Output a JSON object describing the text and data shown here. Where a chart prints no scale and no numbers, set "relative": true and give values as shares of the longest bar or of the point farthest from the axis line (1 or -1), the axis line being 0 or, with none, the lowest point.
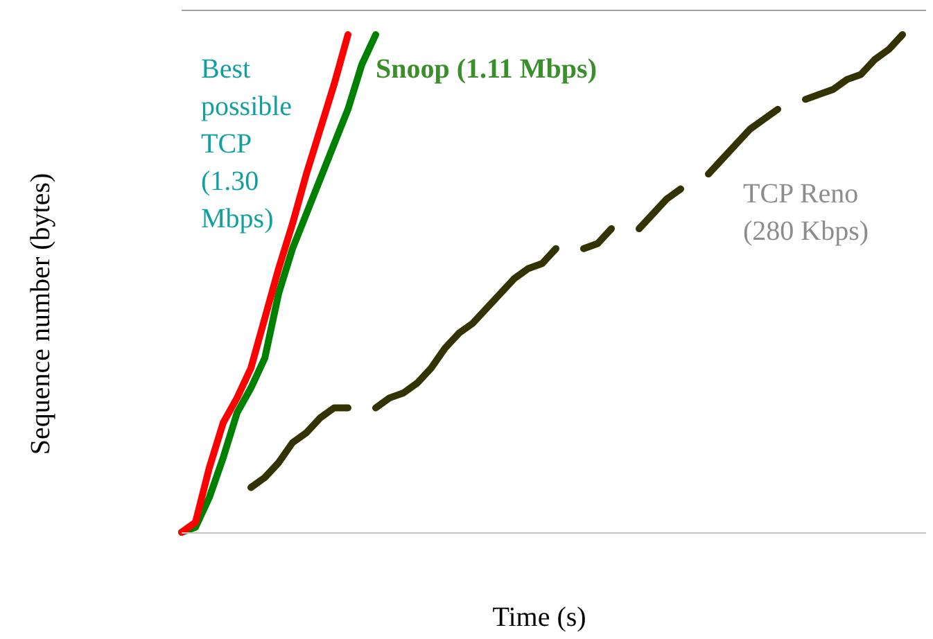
{
  "chart_data": {
    "type": "line",
    "relative": true,
    "xlabel": "Time (s)",
    "ylabel": "Sequence number (bytes)",
    "legend": false,
    "grid": false,
    "marker": "none",
    "line_style": "solid",
    "tick_labels": false,
    "categories": [
      null,
      null,
      null,
      null,
      null,
      null,
      null,
      null,
      null,
      null,
      null,
      null,
      null,
      null,
      null,
      null,
      null,
      null,
      null,
      null,
      null,
      null,
      null,
      null,
      null,
      null,
      null,
      null,
      null,
      null,
      null,
      null,
      null,
      null,
      null,
      null,
      null,
      null,
      null,
      null,
      null,
      null,
      null,
      null,
      null,
      null,
      null,
      null,
      null,
      null,
      null,
      null,
      null
    ],
    "series": [
      {
        "name": "Best possible TCP (1.30 Mbps)",
        "color": "#ff0000",
        "values": [
          0,
          0.02,
          0.13,
          0.22,
          0.27,
          0.33,
          0.43,
          0.53,
          0.62,
          0.72,
          0.81,
          0.9,
          1.0,
          null,
          null,
          null,
          null,
          null,
          null,
          null,
          null,
          null,
          null,
          null,
          null,
          null,
          null,
          null,
          null,
          null,
          null,
          null,
          null,
          null,
          null,
          null,
          null,
          null,
          null,
          null,
          null,
          null,
          null,
          null,
          null,
          null,
          null,
          null,
          null,
          null,
          null,
          null,
          null
        ]
      },
      {
        "name": "Snoop (1.11 Mbps)",
        "color": "#008000",
        "values": [
          0,
          0.01,
          0.07,
          0.15,
          0.24,
          0.29,
          0.35,
          0.48,
          0.57,
          0.64,
          0.71,
          0.78,
          0.85,
          0.94,
          1.0,
          null,
          null,
          null,
          null,
          null,
          null,
          null,
          null,
          null,
          null,
          null,
          null,
          null,
          null,
          null,
          null,
          null,
          null,
          null,
          null,
          null,
          null,
          null,
          null,
          null,
          null,
          null,
          null,
          null,
          null,
          null,
          null,
          null,
          null,
          null,
          null,
          null,
          null
        ]
      },
      {
        "name": "TCP Reno (280 Kbps)",
        "color": "#333300",
        "values": [
          null,
          null,
          null,
          null,
          null,
          0.09,
          0.11,
          0.14,
          0.18,
          0.2,
          0.23,
          0.25,
          0.25,
          null,
          0.25,
          0.27,
          0.28,
          0.3,
          0.33,
          0.37,
          0.4,
          0.42,
          0.45,
          0.48,
          0.51,
          0.53,
          0.54,
          0.57,
          null,
          0.57,
          0.58,
          0.61,
          null,
          0.61,
          0.64,
          0.67,
          0.69,
          null,
          0.72,
          0.75,
          0.78,
          0.81,
          0.83,
          0.85,
          null,
          0.87,
          0.88,
          0.89,
          0.91,
          0.92,
          0.95,
          0.97,
          1.0
        ]
      }
    ]
  }
}
